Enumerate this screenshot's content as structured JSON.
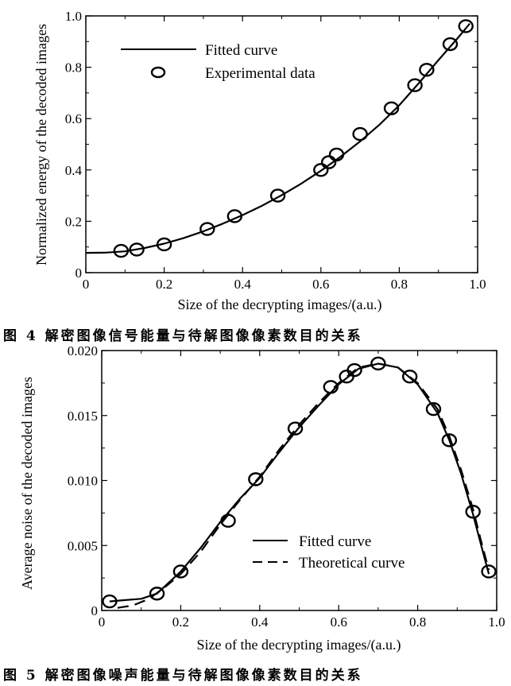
{
  "chart_data": [
    {
      "type": "line",
      "caption": "图 4  解密图像信号能量与待解图像像素数目的关系",
      "title": "",
      "xlabel": "Size of the decrypting images/(a.u.)",
      "ylabel": "Normalized energy of the decoded images",
      "xlim": [
        0,
        1.0
      ],
      "ylim": [
        0,
        1.0
      ],
      "xticks": [
        "0",
        "0.2",
        "0.4",
        "0.6",
        "0.8",
        "1.0"
      ],
      "yticks": [
        "0",
        "0.2",
        "0.4",
        "0.6",
        "0.8",
        "1.0"
      ],
      "grid": false,
      "legend_position": "top-left",
      "series": [
        {
          "name": "Fitted curve",
          "style": "solid",
          "x": [
            0.0,
            0.05,
            0.1,
            0.15,
            0.2,
            0.25,
            0.3,
            0.35,
            0.4,
            0.45,
            0.5,
            0.55,
            0.6,
            0.65,
            0.7,
            0.75,
            0.8,
            0.85,
            0.9,
            0.95,
            0.98
          ],
          "y": [
            0.077,
            0.078,
            0.083,
            0.096,
            0.113,
            0.135,
            0.161,
            0.191,
            0.224,
            0.261,
            0.302,
            0.347,
            0.397,
            0.451,
            0.511,
            0.577,
            0.652,
            0.738,
            0.828,
            0.915,
            0.97
          ]
        },
        {
          "name": "Experimental data",
          "style": "circle-marker",
          "x": [
            0.09,
            0.13,
            0.2,
            0.31,
            0.38,
            0.49,
            0.6,
            0.62,
            0.64,
            0.7,
            0.78,
            0.84,
            0.87,
            0.93,
            0.97
          ],
          "y": [
            0.085,
            0.09,
            0.11,
            0.17,
            0.22,
            0.3,
            0.4,
            0.43,
            0.46,
            0.54,
            0.64,
            0.73,
            0.79,
            0.89,
            0.96
          ]
        }
      ]
    },
    {
      "type": "line",
      "caption": "图 5  解密图像噪声能量与待解图像像素数目的关系",
      "title": "",
      "xlabel": "Size of the decrypting images/(a.u.)",
      "ylabel": "Average noise of the decoded images",
      "xlim": [
        0,
        1.0
      ],
      "ylim": [
        0,
        0.02
      ],
      "xticks": [
        "0",
        "0.2",
        "0.4",
        "0.6",
        "0.8",
        "1.0"
      ],
      "yticks": [
        "0",
        "0.005",
        "0.010",
        "0.015",
        "0.020"
      ],
      "grid": false,
      "legend_position": "bottom-right",
      "series": [
        {
          "name": "Fitted curve",
          "style": "solid",
          "x": [
            0.02,
            0.06,
            0.1,
            0.14,
            0.2,
            0.25,
            0.3,
            0.35,
            0.4,
            0.45,
            0.5,
            0.55,
            0.6,
            0.65,
            0.7,
            0.75,
            0.8,
            0.85,
            0.88,
            0.91,
            0.94,
            0.96,
            0.98
          ],
          "y": [
            0.0007,
            0.0008,
            0.0009,
            0.0013,
            0.003,
            0.0048,
            0.0068,
            0.0086,
            0.0102,
            0.0122,
            0.0141,
            0.0158,
            0.0174,
            0.0186,
            0.019,
            0.0187,
            0.0174,
            0.0152,
            0.0131,
            0.0105,
            0.0074,
            0.0051,
            0.0028
          ]
        },
        {
          "name": "Theoretical curve",
          "style": "dashed",
          "x": [
            0.04,
            0.08,
            0.12,
            0.16,
            0.2,
            0.25,
            0.3,
            0.35,
            0.4,
            0.45,
            0.5,
            0.55,
            0.6,
            0.65,
            0.7,
            0.75,
            0.8,
            0.85,
            0.88,
            0.91,
            0.94,
            0.96,
            0.98
          ],
          "y": [
            0.0002,
            0.0004,
            0.0009,
            0.0018,
            0.0028,
            0.0045,
            0.0066,
            0.0085,
            0.0103,
            0.0124,
            0.0143,
            0.016,
            0.0175,
            0.0187,
            0.019,
            0.0187,
            0.0175,
            0.0155,
            0.0134,
            0.0108,
            0.0078,
            0.0054,
            0.0031
          ]
        },
        {
          "name": "Experimental data",
          "style": "circle-marker",
          "x": [
            0.02,
            0.14,
            0.2,
            0.32,
            0.39,
            0.49,
            0.58,
            0.62,
            0.64,
            0.7,
            0.78,
            0.84,
            0.88,
            0.94,
            0.98
          ],
          "y": [
            0.0007,
            0.0013,
            0.003,
            0.0069,
            0.0101,
            0.014,
            0.0172,
            0.018,
            0.0185,
            0.019,
            0.018,
            0.0155,
            0.0131,
            0.0076,
            0.003
          ]
        }
      ]
    }
  ]
}
